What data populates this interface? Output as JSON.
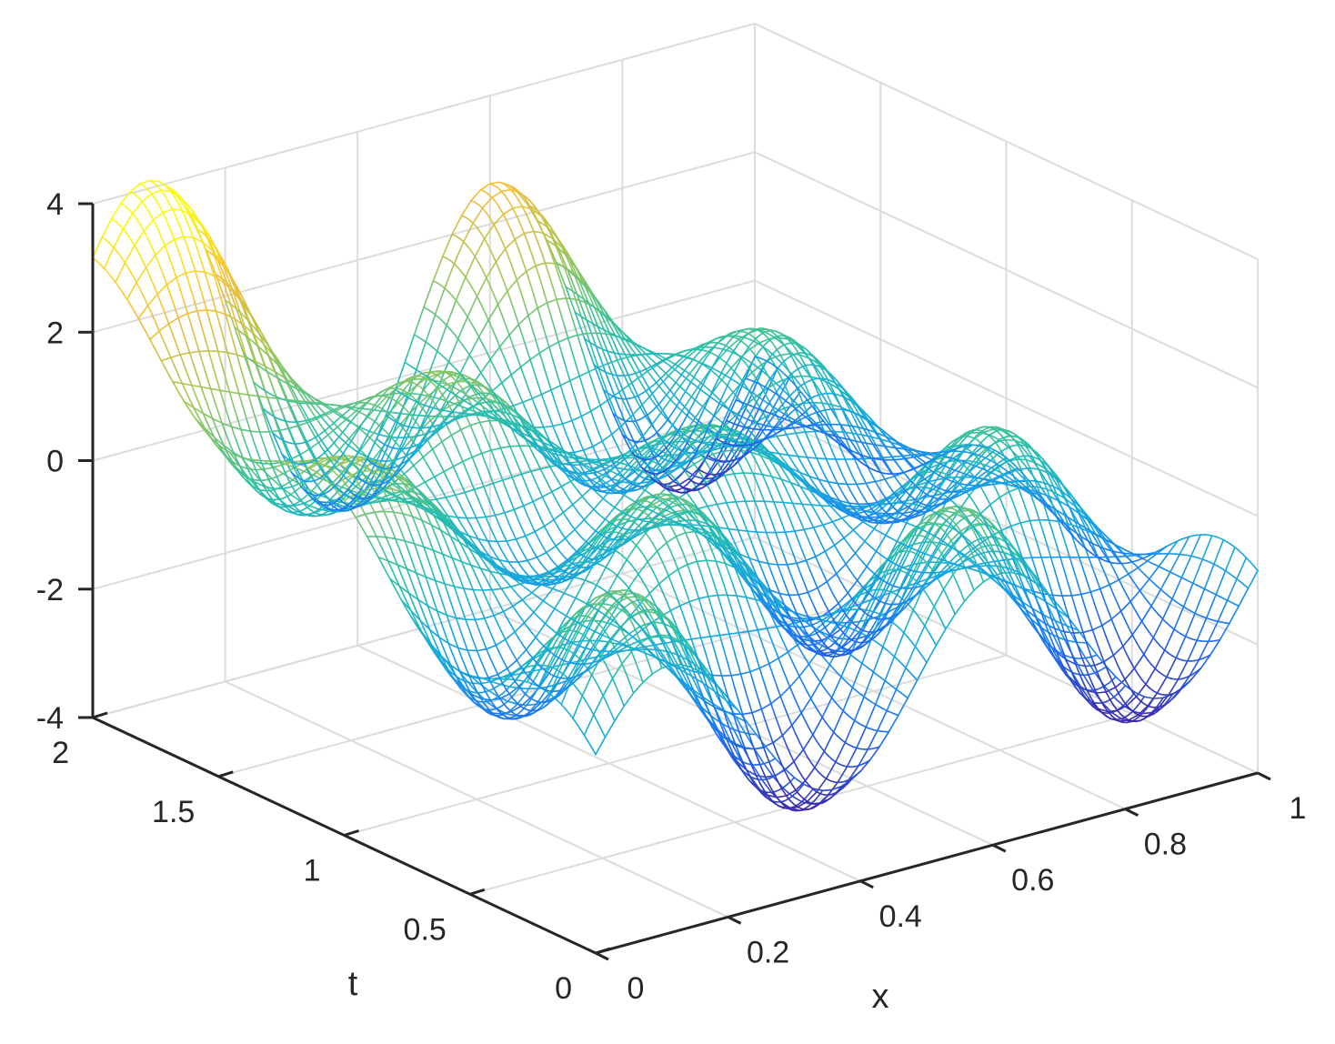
{
  "chart_data": {
    "type": "surface-mesh",
    "title": "",
    "xlabel": "x",
    "ylabel": "t",
    "zlabel": "",
    "xlim": [
      0,
      1
    ],
    "tlim": [
      0,
      2
    ],
    "zlim": [
      -4,
      4
    ],
    "x_ticks": [
      "0",
      "0.2",
      "0.4",
      "0.6",
      "0.8",
      "1"
    ],
    "t_ticks": [
      "0",
      "0.5",
      "1",
      "1.5",
      "2"
    ],
    "z_ticks": [
      "-4",
      "-2",
      "0",
      "2",
      "4"
    ],
    "grid": true,
    "colormap": "parula",
    "colormap_colors": [
      "#3e26a8",
      "#1d6ef5",
      "#17a9e1",
      "#2dc1a5",
      "#9dc65a",
      "#f5be3a",
      "#f9fb15"
    ],
    "surface_samples": [
      {
        "x": 0,
        "t": 0,
        "z": -0.5
      },
      {
        "x": 1,
        "t": 0,
        "z": -1.0
      },
      {
        "x": 0,
        "t": 2,
        "z": 3.6
      },
      {
        "x": 1,
        "t": 2,
        "z": 0.5
      },
      {
        "x": 0.3,
        "t": 0.5,
        "z": -2.8
      },
      {
        "x": 0.75,
        "t": 0.5,
        "z": -2.9
      },
      {
        "x": 0.35,
        "t": 1.5,
        "z": 1.9
      },
      {
        "x": 0.5,
        "t": 2,
        "z": 2.8
      }
    ]
  },
  "figure": {
    "background": "#ffffff",
    "grid_color": "#dcdcdc",
    "axis_color": "#262626"
  }
}
